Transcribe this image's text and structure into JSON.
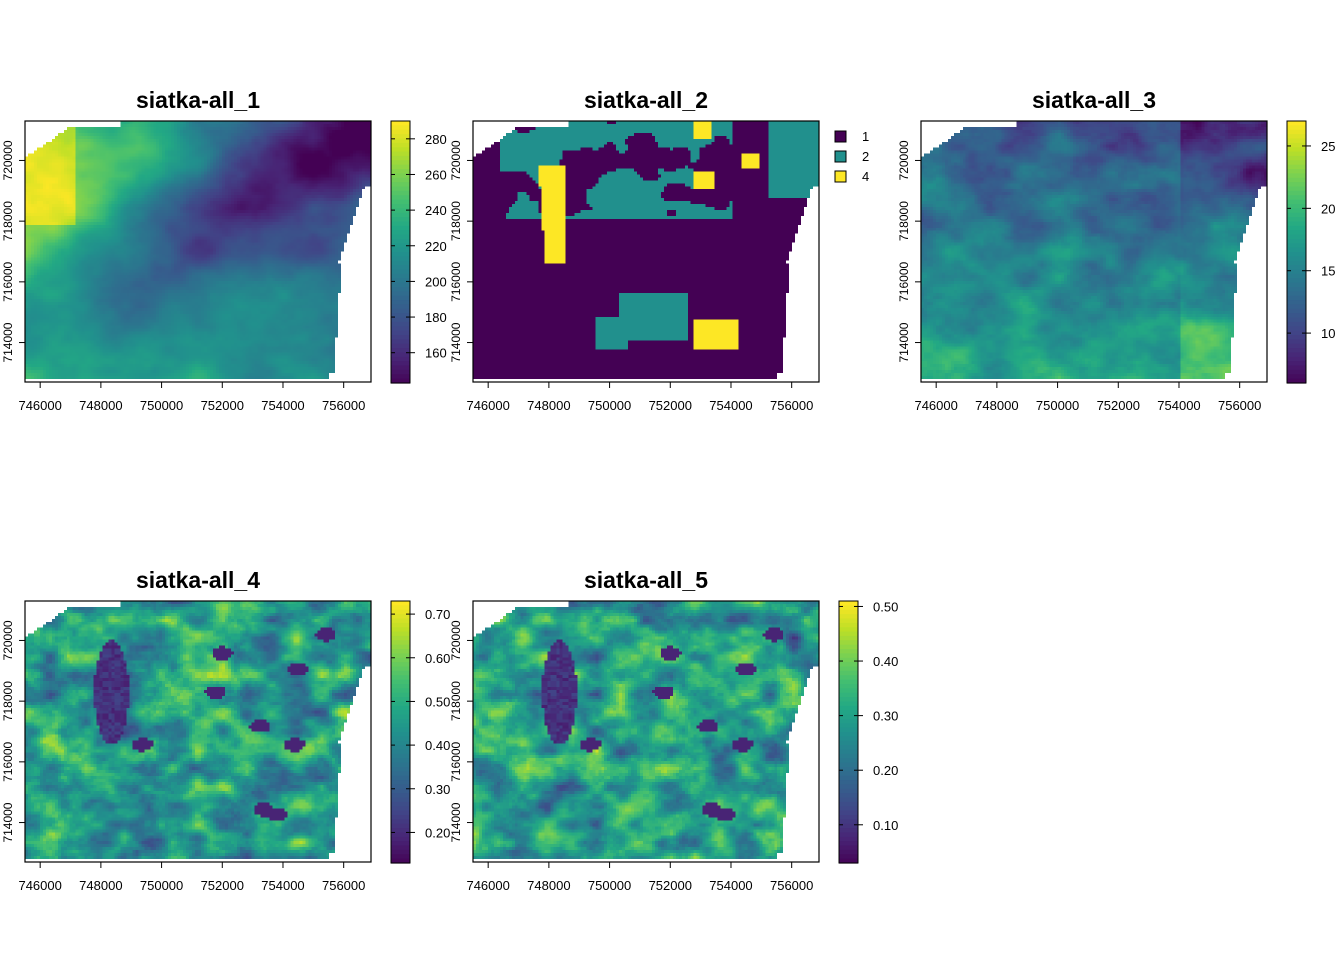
{
  "palette": [
    "#440154",
    "#482475",
    "#414487",
    "#355f8d",
    "#2a788e",
    "#21908d",
    "#22a884",
    "#42be71",
    "#7ad151",
    "#bddf26",
    "#fde725"
  ],
  "panels": [
    {
      "title": "siatka-all_1",
      "x_ticks": [
        "746000",
        "748000",
        "750000",
        "752000",
        "754000",
        "756000"
      ],
      "y_ticks": [
        "714000",
        "716000",
        "718000",
        "720000"
      ],
      "legend_type": "continuous",
      "legend_ticks": [
        "160",
        "180",
        "200",
        "220",
        "240",
        "260",
        "280"
      ],
      "chart_data": {
        "type": "heatmap",
        "xlim": [
          745500,
          756900
        ],
        "ylim": [
          712700,
          721300
        ],
        "zlim": [
          143,
          290
        ],
        "pattern": "elevation"
      }
    },
    {
      "title": "siatka-all_2",
      "x_ticks": [
        "746000",
        "748000",
        "750000",
        "752000",
        "754000",
        "756000"
      ],
      "y_ticks": [
        "714000",
        "716000",
        "718000",
        "720000"
      ],
      "legend_type": "categorical",
      "legend_ticks": [
        "1",
        "2",
        "4"
      ],
      "legend_colors": [
        "#440154",
        "#21908d",
        "#fde725"
      ],
      "chart_data": {
        "type": "heatmap",
        "xlim": [
          745500,
          756900
        ],
        "ylim": [
          712700,
          721300
        ],
        "categories": [
          "1",
          "2",
          "4"
        ],
        "pattern": "classes"
      }
    },
    {
      "title": "siatka-all_3",
      "x_ticks": [
        "746000",
        "748000",
        "750000",
        "752000",
        "754000",
        "756000"
      ],
      "y_ticks": [
        "714000",
        "716000",
        "718000",
        "720000"
      ],
      "legend_type": "continuous",
      "legend_ticks": [
        "10",
        "15",
        "20",
        "25"
      ],
      "chart_data": {
        "type": "heatmap",
        "xlim": [
          745500,
          756900
        ],
        "ylim": [
          712700,
          721300
        ],
        "zlim": [
          6,
          27
        ],
        "pattern": "slope"
      }
    },
    {
      "title": "siatka-all_4",
      "x_ticks": [
        "746000",
        "748000",
        "750000",
        "752000",
        "754000",
        "756000"
      ],
      "y_ticks": [
        "714000",
        "716000",
        "718000",
        "720000"
      ],
      "legend_type": "continuous",
      "legend_ticks": [
        "0.20",
        "0.30",
        "0.40",
        "0.50",
        "0.60",
        "0.70"
      ],
      "chart_data": {
        "type": "heatmap",
        "xlim": [
          745500,
          756900
        ],
        "ylim": [
          712700,
          721300
        ],
        "zlim": [
          0.13,
          0.73
        ],
        "pattern": "index"
      }
    },
    {
      "title": "siatka-all_5",
      "x_ticks": [
        "746000",
        "748000",
        "750000",
        "752000",
        "754000",
        "756000"
      ],
      "y_ticks": [
        "714000",
        "716000",
        "718000",
        "720000"
      ],
      "legend_type": "continuous",
      "legend_ticks": [
        "0.10",
        "0.20",
        "0.30",
        "0.40",
        "0.50"
      ],
      "chart_data": {
        "type": "heatmap",
        "xlim": [
          745500,
          756900
        ],
        "ylim": [
          712700,
          721300
        ],
        "zlim": [
          0.03,
          0.51
        ],
        "pattern": "index"
      }
    }
  ]
}
